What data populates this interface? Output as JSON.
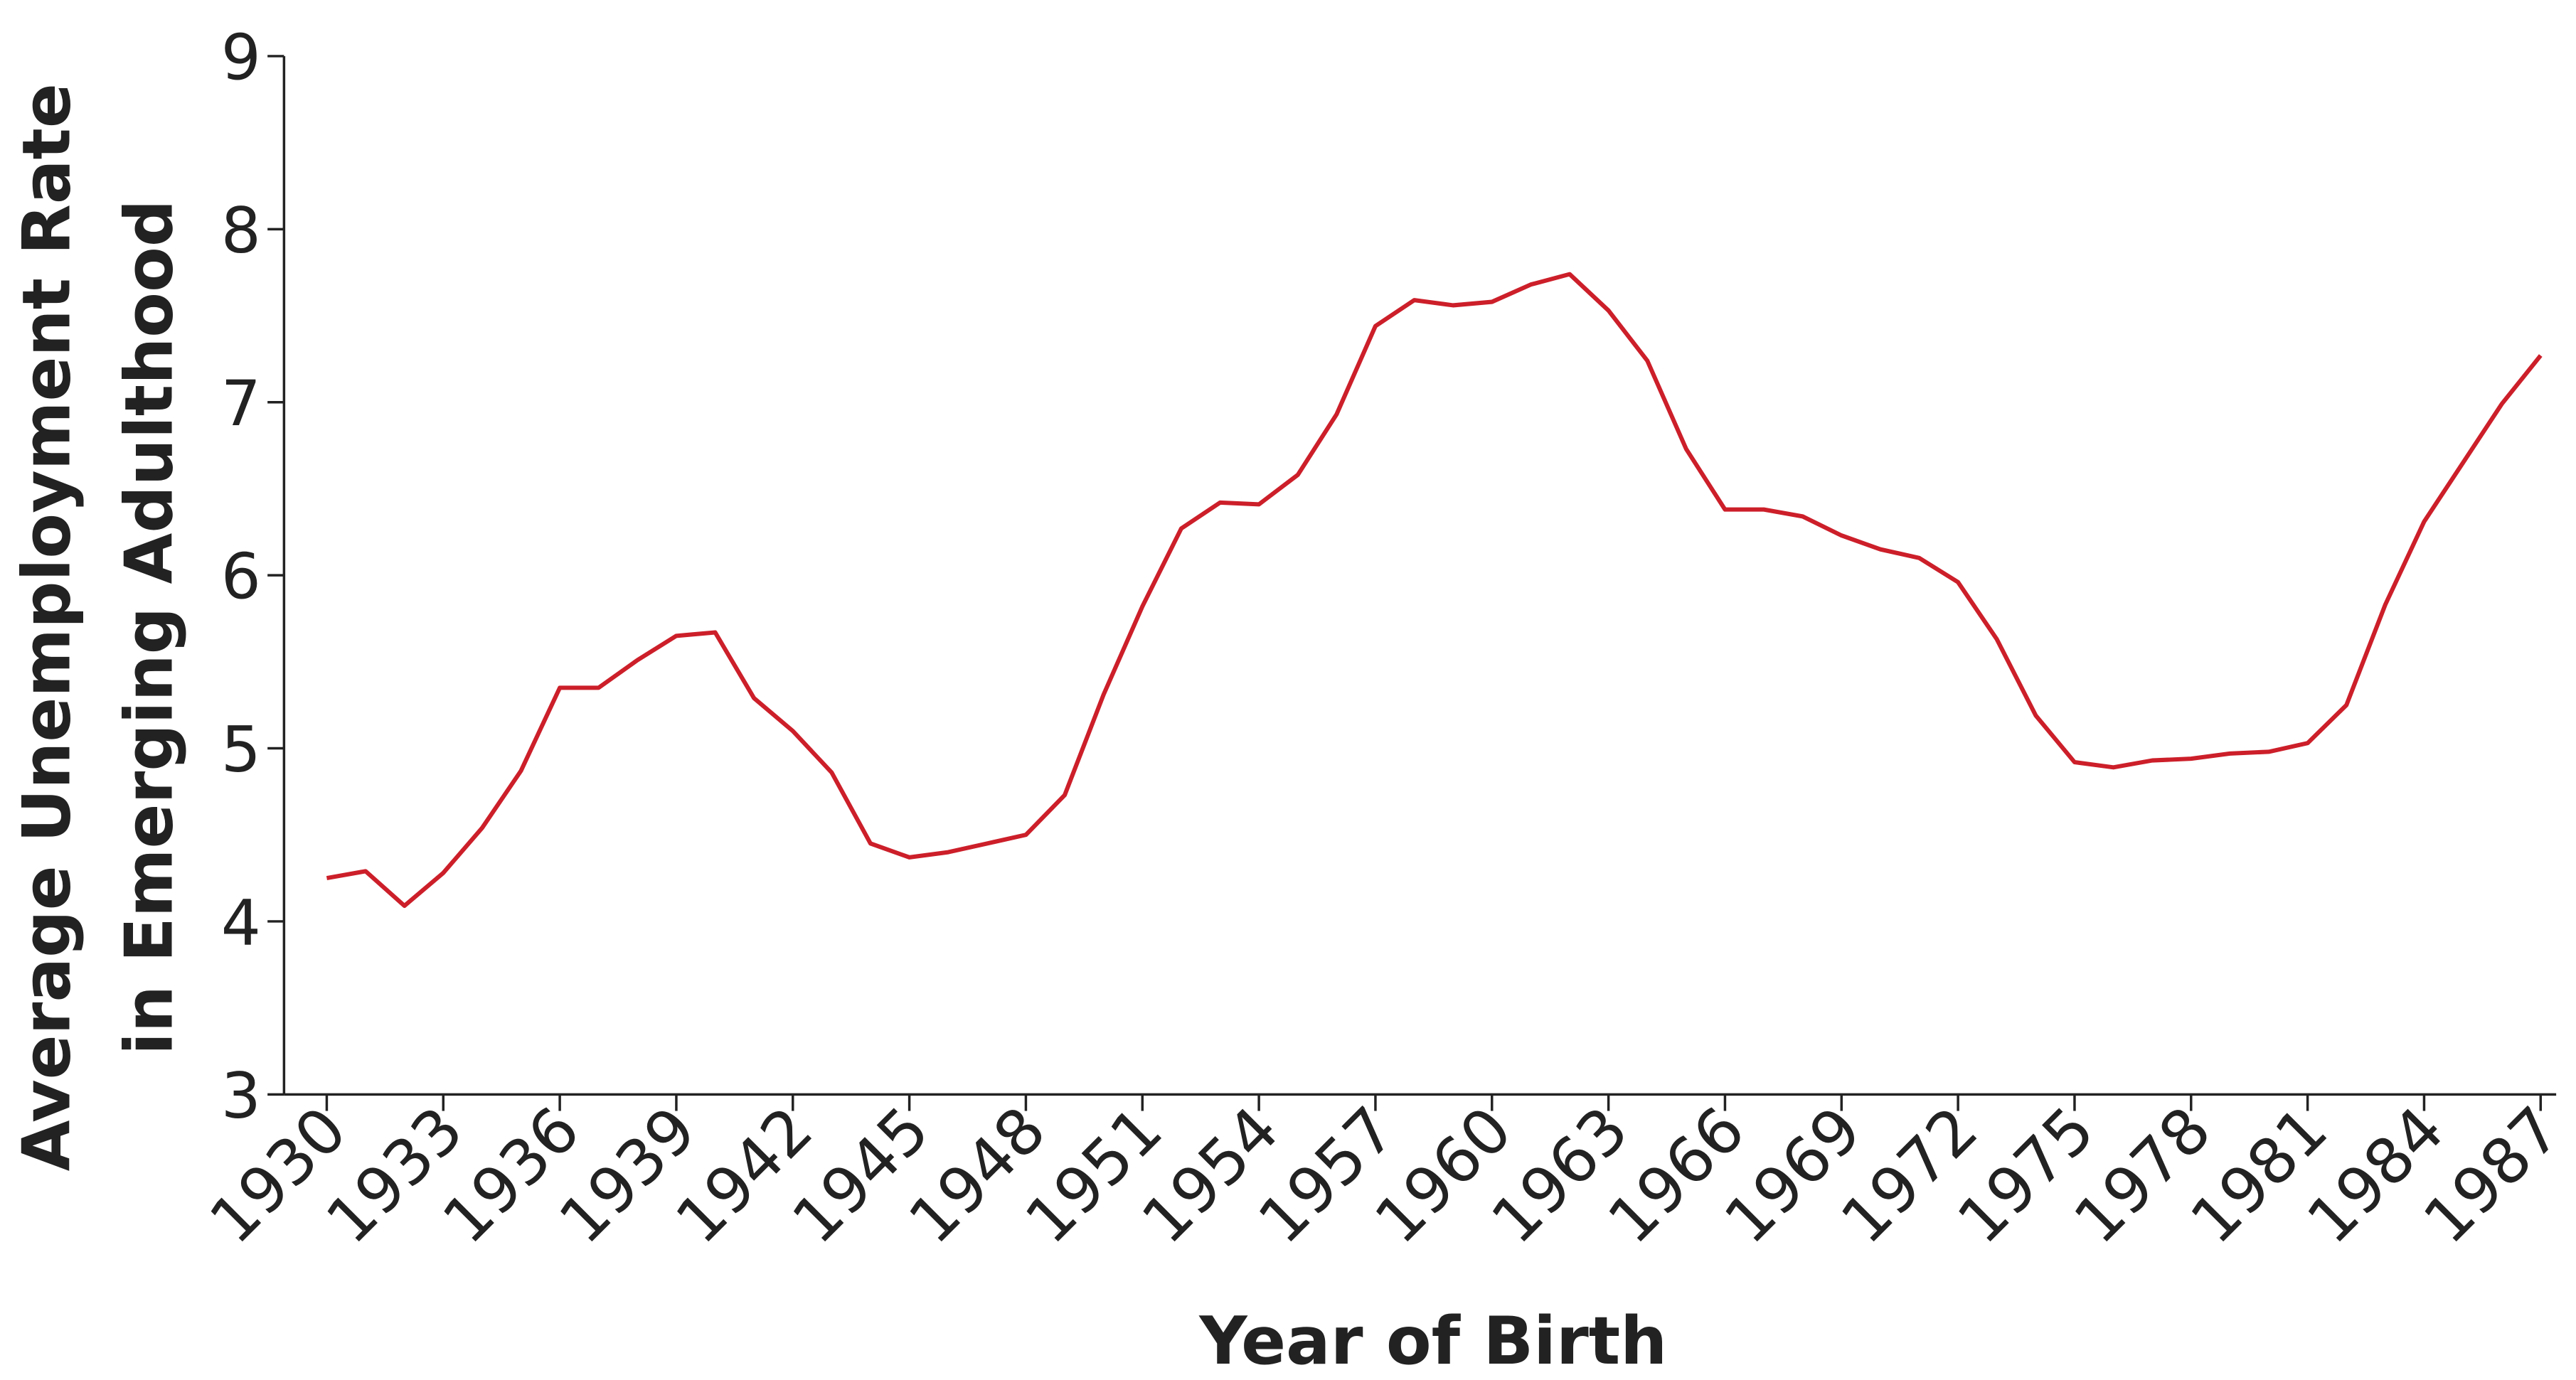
{
  "chart_data": {
    "type": "line",
    "xlabel": "Year of Birth",
    "ylabel": [
      "Average Unemployment Rate",
      "in Emerging Adulthood"
    ],
    "x": [
      1930,
      1931,
      1932,
      1933,
      1934,
      1935,
      1936,
      1937,
      1938,
      1939,
      1940,
      1941,
      1942,
      1943,
      1944,
      1945,
      1946,
      1947,
      1948,
      1949,
      1950,
      1951,
      1952,
      1953,
      1954,
      1955,
      1956,
      1957,
      1958,
      1959,
      1960,
      1961,
      1962,
      1963,
      1964,
      1965,
      1966,
      1967,
      1968,
      1969,
      1970,
      1971,
      1972,
      1973,
      1974,
      1975,
      1976,
      1977,
      1978,
      1979,
      1980,
      1981,
      1982,
      1983,
      1984,
      1985,
      1986,
      1987
    ],
    "series": [
      {
        "color": "#cc1f2a",
        "values": [
          4.25,
          4.29,
          4.09,
          4.28,
          4.54,
          4.87,
          5.35,
          5.35,
          5.51,
          5.65,
          5.67,
          5.29,
          5.1,
          4.86,
          4.45,
          4.37,
          4.4,
          4.45,
          4.5,
          4.73,
          5.31,
          5.82,
          6.27,
          6.42,
          6.41,
          6.58,
          6.93,
          7.44,
          7.59,
          7.56,
          7.58,
          7.68,
          7.74,
          7.53,
          7.24,
          6.73,
          6.38,
          6.38,
          6.34,
          6.23,
          6.15,
          6.1,
          5.96,
          5.63,
          5.19,
          4.92,
          4.89,
          4.93,
          4.94,
          4.97,
          4.98,
          5.03,
          5.25,
          5.83,
          6.31,
          6.65,
          6.99,
          7.27
        ]
      }
    ],
    "xlim": [
      1928.9,
      1987.4
    ],
    "xticks": [
      1930,
      1933,
      1936,
      1939,
      1942,
      1945,
      1948,
      1951,
      1954,
      1957,
      1960,
      1963,
      1966,
      1969,
      1972,
      1975,
      1978,
      1981,
      1984,
      1987
    ],
    "ylim": [
      3,
      9
    ],
    "yticks": [
      3,
      4,
      5,
      6,
      7,
      8,
      9
    ]
  }
}
